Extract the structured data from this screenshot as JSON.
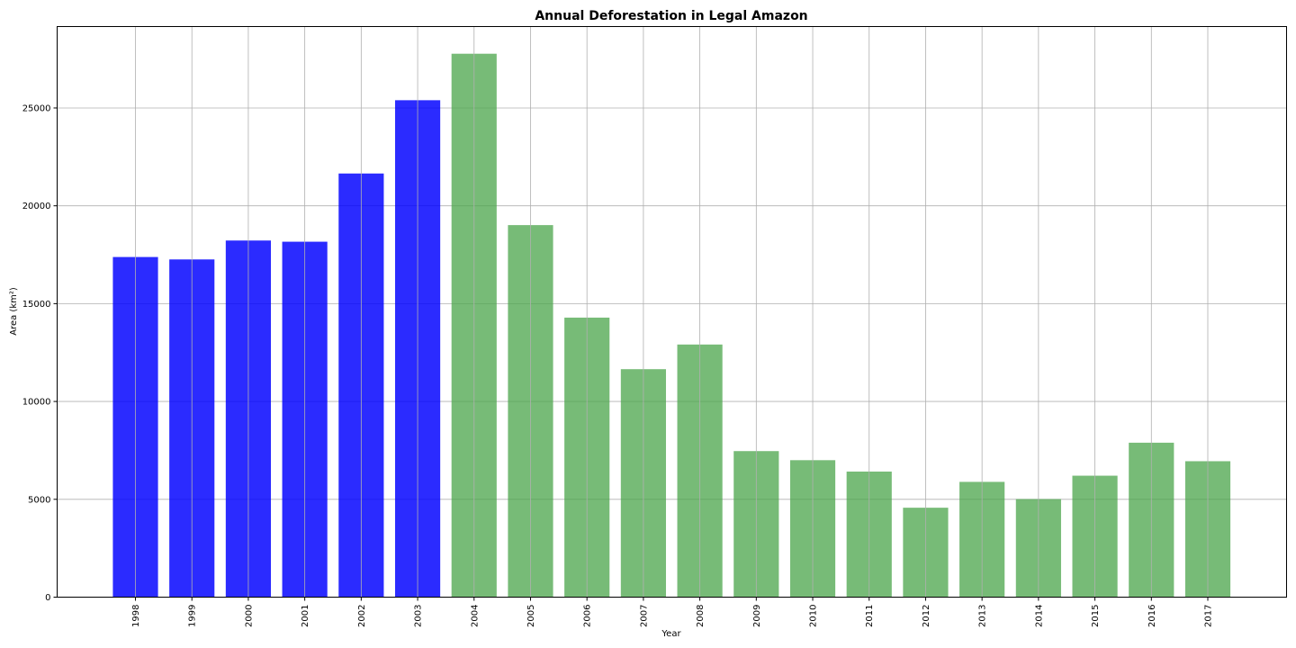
{
  "chart_data": {
    "type": "bar",
    "title": "Annual Deforestation in Legal Amazon",
    "xlabel": "Year",
    "ylabel": "Area (km²)",
    "categories": [
      "1998",
      "1999",
      "2000",
      "2001",
      "2002",
      "2003",
      "2004",
      "2005",
      "2006",
      "2007",
      "2008",
      "2009",
      "2010",
      "2011",
      "2012",
      "2013",
      "2014",
      "2015",
      "2016",
      "2017"
    ],
    "values": [
      17383,
      17259,
      18226,
      18165,
      21651,
      25396,
      27772,
      19014,
      14286,
      11651,
      12911,
      7464,
      7000,
      6418,
      4571,
      5891,
      5012,
      6207,
      7893,
      6947
    ],
    "colors": [
      "#0000ff",
      "#0000ff",
      "#0000ff",
      "#0000ff",
      "#0000ff",
      "#0000ff",
      "#4ca64c",
      "#4ca64c",
      "#4ca64c",
      "#4ca64c",
      "#4ca64c",
      "#4ca64c",
      "#4ca64c",
      "#4ca64c",
      "#4ca64c",
      "#4ca64c",
      "#4ca64c",
      "#4ca64c",
      "#4ca64c",
      "#4ca64c"
    ],
    "bar_opacity": [
      0.83,
      0.83,
      0.83,
      0.83,
      0.83,
      0.83,
      0.76,
      0.76,
      0.76,
      0.76,
      0.76,
      0.76,
      0.76,
      0.76,
      0.76,
      0.76,
      0.76,
      0.76,
      0.76,
      0.76
    ],
    "yticks": [
      0,
      5000,
      10000,
      15000,
      20000,
      25000
    ],
    "ylim": [
      0,
      29161
    ],
    "grid": true
  }
}
